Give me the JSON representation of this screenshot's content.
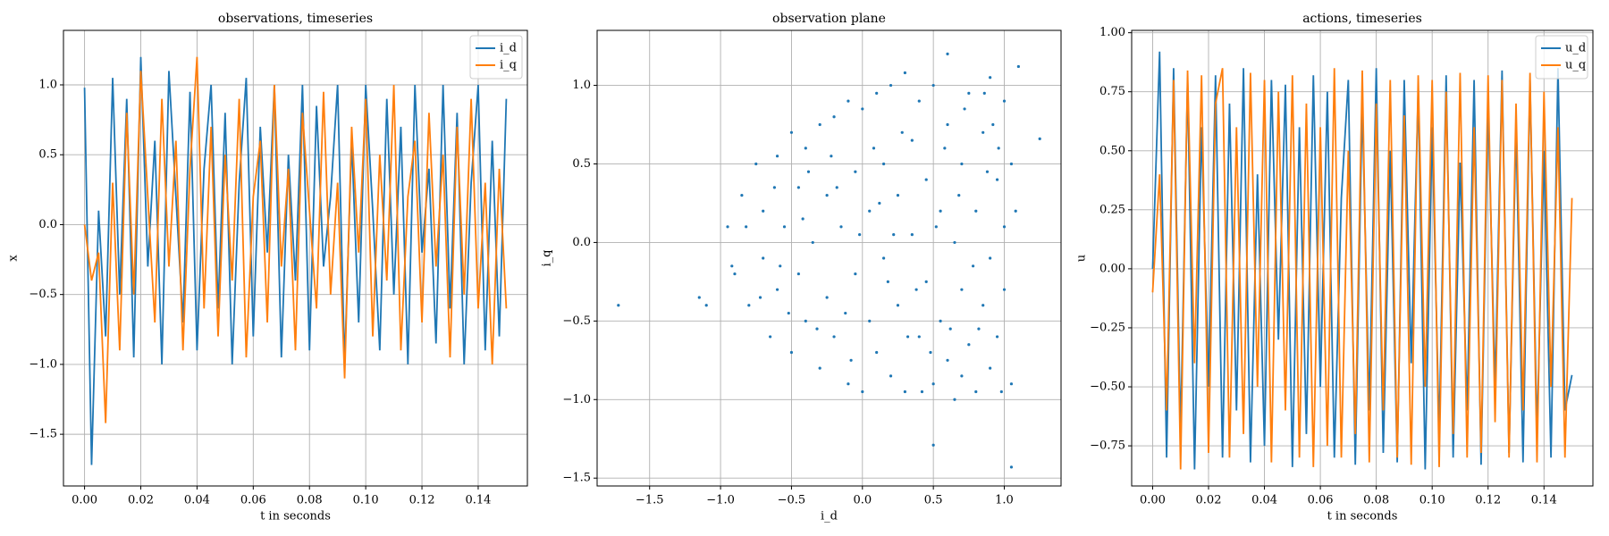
{
  "chart_data": [
    {
      "type": "line",
      "title": "observations, timeseries",
      "xlabel": "t in seconds",
      "ylabel": "x",
      "grid": true,
      "legend": "upper right",
      "x": [
        0,
        0.0025,
        0.005,
        0.0075,
        0.01,
        0.0125,
        0.015,
        0.0175,
        0.02,
        0.0225,
        0.025,
        0.0275,
        0.03,
        0.0325,
        0.035,
        0.0375,
        0.04,
        0.0425,
        0.045,
        0.0475,
        0.05,
        0.0525,
        0.055,
        0.0575,
        0.06,
        0.0625,
        0.065,
        0.0675,
        0.07,
        0.0725,
        0.075,
        0.0775,
        0.08,
        0.0825,
        0.085,
        0.0875,
        0.09,
        0.0925,
        0.095,
        0.0975,
        0.1,
        0.1025,
        0.105,
        0.1075,
        0.11,
        0.1125,
        0.115,
        0.1175,
        0.12,
        0.1225,
        0.125,
        0.1275,
        0.13,
        0.1325,
        0.135,
        0.1375,
        0.14,
        0.1425,
        0.145,
        0.1475,
        0.15
      ],
      "series": [
        {
          "name": "i_d",
          "color": "#1f77b4",
          "values": [
            0.98,
            -1.72,
            0.1,
            -0.8,
            1.05,
            -0.5,
            0.9,
            -0.95,
            1.2,
            -0.3,
            0.6,
            -1.0,
            1.1,
            0.2,
            -0.7,
            0.95,
            -0.9,
            0.4,
            1.0,
            -0.6,
            0.8,
            -1.0,
            0.3,
            1.05,
            -0.8,
            0.7,
            -0.2,
            1.0,
            -0.95,
            0.5,
            -0.4,
            1.0,
            -0.9,
            0.85,
            -0.3,
            0.2,
            1.0,
            -1.0,
            0.6,
            -0.7,
            1.0,
            0.1,
            -0.9,
            0.9,
            -0.5,
            0.7,
            -1.0,
            1.0,
            -0.2,
            0.4,
            -0.85,
            1.0,
            -0.6,
            0.8,
            -1.0,
            0.3,
            1.0,
            -0.9,
            0.6,
            -0.8,
            0.9
          ]
        },
        {
          "name": "i_q",
          "color": "#ff7f0e",
          "values": [
            0.0,
            -0.4,
            -0.2,
            -1.42,
            0.3,
            -0.9,
            0.8,
            -0.5,
            1.1,
            0.2,
            -0.7,
            0.9,
            -0.3,
            0.6,
            -0.9,
            0.4,
            1.2,
            -0.6,
            0.7,
            -0.8,
            0.5,
            -0.4,
            0.9,
            -0.95,
            0.2,
            0.6,
            -0.7,
            1.0,
            -0.3,
            0.4,
            -0.9,
            0.8,
            0.1,
            -0.6,
            0.95,
            -0.5,
            0.3,
            -1.1,
            0.7,
            -0.2,
            0.9,
            -0.8,
            0.5,
            -0.4,
            1.0,
            -0.9,
            0.2,
            0.6,
            -0.7,
            0.8,
            -0.3,
            0.5,
            -0.95,
            0.7,
            -0.5,
            0.9,
            -0.6,
            0.3,
            -1.0,
            0.4,
            -0.6
          ]
        }
      ],
      "xlim": [
        -0.0075,
        0.1575
      ],
      "ylim": [
        -1.87,
        1.39
      ],
      "xticks": [
        {
          "value": 0,
          "label": "0.00"
        },
        0.02,
        0.04,
        0.06,
        0.08,
        {
          "value": 0.1,
          "label": "0.10"
        },
        0.12,
        0.14
      ],
      "yticks": [
        {
          "value": -1.5,
          "label": "−1.5"
        },
        {
          "value": -1,
          "label": "−1.0"
        },
        {
          "value": -0.5,
          "label": "−0.5"
        },
        {
          "value": 0,
          "label": "0.0"
        },
        0.5,
        {
          "value": 1,
          "label": "1.0"
        }
      ]
    },
    {
      "type": "scatter",
      "title": "observation plane",
      "xlabel": "i_d",
      "ylabel": "i_q",
      "grid": true,
      "color": "#1f77b4",
      "x": [
        -1.72,
        -1.1,
        -1.15,
        0.5,
        1.05,
        1.25,
        -0.95,
        -0.9,
        -0.85,
        -0.8,
        -0.75,
        -0.7,
        -0.7,
        -0.65,
        -0.6,
        -0.6,
        -0.55,
        -0.5,
        -0.5,
        -0.45,
        -0.45,
        -0.4,
        -0.4,
        -0.35,
        -0.3,
        -0.3,
        -0.25,
        -0.25,
        -0.2,
        -0.2,
        -0.15,
        -0.1,
        -0.1,
        -0.05,
        -0.05,
        0.0,
        0.0,
        0.05,
        0.05,
        0.1,
        0.1,
        0.15,
        0.15,
        0.2,
        0.2,
        0.25,
        0.25,
        0.3,
        0.3,
        0.35,
        0.35,
        0.4,
        0.4,
        0.45,
        0.45,
        0.5,
        0.5,
        0.55,
        0.55,
        0.6,
        0.6,
        0.6,
        0.65,
        0.65,
        0.7,
        0.7,
        0.75,
        0.75,
        0.8,
        0.8,
        0.85,
        0.85,
        0.9,
        0.9,
        0.9,
        0.95,
        0.95,
        1.0,
        1.0,
        1.0,
        1.05,
        1.05,
        1.1,
        0.92,
        0.78,
        0.68,
        0.58,
        0.48,
        0.38,
        0.28,
        0.18,
        0.08,
        -0.02,
        -0.12,
        -0.22,
        -0.32,
        -0.42,
        -0.52,
        -0.62,
        -0.72,
        -0.82,
        -0.92,
        0.88,
        0.72,
        0.52,
        0.32,
        0.12,
        -0.08,
        0.62,
        0.82,
        0.98,
        1.08,
        0.42,
        0.22,
        -0.18,
        -0.38,
        -0.58,
        0.7,
        0.86,
        0.96
      ],
      "values": [
        -0.4,
        -0.4,
        -0.35,
        -1.29,
        -1.43,
        0.66,
        0.1,
        -0.2,
        0.3,
        -0.4,
        0.5,
        -0.1,
        0.2,
        -0.6,
        0.55,
        -0.3,
        0.1,
        0.7,
        -0.7,
        0.35,
        -0.2,
        0.6,
        -0.5,
        0.0,
        0.75,
        -0.8,
        0.3,
        -0.35,
        0.8,
        -0.6,
        0.1,
        0.9,
        -0.9,
        0.45,
        -0.2,
        0.85,
        -0.95,
        0.2,
        -0.5,
        0.95,
        -0.7,
        0.5,
        -0.1,
        1.0,
        -0.85,
        0.3,
        -0.4,
        1.08,
        -0.95,
        0.65,
        0.05,
        -0.6,
        0.9,
        -0.25,
        0.4,
        1.0,
        -0.9,
        0.2,
        -0.5,
        1.2,
        0.75,
        -0.75,
        0.0,
        -1.0,
        0.5,
        -0.3,
        0.95,
        -0.65,
        0.2,
        -0.95,
        0.7,
        -0.4,
        1.05,
        -0.1,
        -0.8,
        0.4,
        -0.6,
        0.9,
        0.1,
        -0.3,
        0.5,
        -0.9,
        1.12,
        0.75,
        -0.15,
        0.3,
        0.6,
        -0.7,
        -0.3,
        0.7,
        -0.25,
        0.6,
        0.05,
        -0.45,
        0.55,
        -0.55,
        0.15,
        -0.45,
        0.35,
        -0.35,
        0.1,
        -0.15,
        0.45,
        0.85,
        0.1,
        -0.6,
        0.25,
        -0.75,
        -0.55,
        -0.55,
        -0.95,
        0.2,
        -0.95,
        0.05,
        0.35,
        0.45,
        -0.15,
        -0.85,
        0.95,
        0.6
      ],
      "xlim": [
        -1.87,
        1.4
      ],
      "ylim": [
        -1.55,
        1.35
      ],
      "xticks": [
        {
          "value": -1.5,
          "label": "−1.5"
        },
        {
          "value": -1,
          "label": "−1.0"
        },
        {
          "value": -0.5,
          "label": "−0.5"
        },
        {
          "value": 0,
          "label": "0.0"
        },
        0.5,
        {
          "value": 1,
          "label": "1.0"
        }
      ],
      "yticks": [
        {
          "value": -1.5,
          "label": "−1.5"
        },
        {
          "value": -1,
          "label": "−1.0"
        },
        {
          "value": -0.5,
          "label": "−0.5"
        },
        {
          "value": 0,
          "label": "0.0"
        },
        0.5,
        {
          "value": 1,
          "label": "1.0"
        }
      ]
    },
    {
      "type": "line",
      "title": "actions, timeseries",
      "xlabel": "t in seconds",
      "ylabel": "u",
      "grid": true,
      "legend": "upper right",
      "x": [
        0,
        0.0025,
        0.005,
        0.0075,
        0.01,
        0.0125,
        0.015,
        0.0175,
        0.02,
        0.0225,
        0.025,
        0.0275,
        0.03,
        0.0325,
        0.035,
        0.0375,
        0.04,
        0.0425,
        0.045,
        0.0475,
        0.05,
        0.0525,
        0.055,
        0.0575,
        0.06,
        0.0625,
        0.065,
        0.0675,
        0.07,
        0.0725,
        0.075,
        0.0775,
        0.08,
        0.0825,
        0.085,
        0.0875,
        0.09,
        0.0925,
        0.095,
        0.0975,
        0.1,
        0.1025,
        0.105,
        0.1075,
        0.11,
        0.1125,
        0.115,
        0.1175,
        0.12,
        0.1225,
        0.125,
        0.1275,
        0.13,
        0.1325,
        0.135,
        0.1375,
        0.14,
        0.1425,
        0.145,
        0.1475,
        0.15
      ],
      "series": [
        {
          "name": "u_d",
          "color": "#1f77b4",
          "values": [
            0.0,
            0.92,
            -0.8,
            0.85,
            -0.7,
            0.8,
            -0.85,
            0.6,
            -0.5,
            0.82,
            -0.8,
            0.7,
            -0.6,
            0.85,
            -0.82,
            0.4,
            -0.75,
            0.8,
            -0.3,
            0.78,
            -0.84,
            0.6,
            -0.7,
            0.82,
            -0.5,
            0.75,
            -0.8,
            0.3,
            0.8,
            -0.83,
            0.7,
            -0.6,
            0.85,
            -0.78,
            0.5,
            -0.82,
            0.8,
            -0.4,
            0.76,
            -0.85,
            0.6,
            -0.7,
            0.82,
            -0.8,
            0.45,
            -0.6,
            0.8,
            -0.83,
            0.7,
            -0.5,
            0.84,
            -0.78,
            0.6,
            -0.82,
            0.8,
            -0.7,
            0.5,
            -0.8,
            0.85,
            -0.6,
            -0.45
          ]
        },
        {
          "name": "u_q",
          "color": "#ff7f0e",
          "values": [
            -0.1,
            0.4,
            -0.6,
            0.8,
            -0.85,
            0.84,
            -0.4,
            0.82,
            -0.78,
            0.7,
            0.85,
            -0.8,
            0.6,
            -0.7,
            0.83,
            -0.5,
            0.8,
            -0.82,
            0.75,
            -0.6,
            0.82,
            -0.8,
            0.7,
            -0.84,
            0.6,
            -0.75,
            0.85,
            -0.8,
            0.5,
            -0.7,
            0.84,
            -0.82,
            0.7,
            -0.6,
            0.8,
            -0.8,
            0.65,
            -0.83,
            0.82,
            -0.5,
            0.8,
            -0.84,
            0.75,
            -0.7,
            0.83,
            -0.8,
            0.6,
            -0.78,
            0.82,
            -0.65,
            0.8,
            -0.8,
            0.7,
            -0.6,
            0.83,
            -0.82,
            0.75,
            -0.5,
            0.6,
            -0.8,
            0.3
          ]
        }
      ],
      "xlim": [
        -0.0075,
        0.1575
      ],
      "ylim": [
        -0.92,
        1.01
      ],
      "xticks": [
        {
          "value": 0,
          "label": "0.00"
        },
        0.02,
        0.04,
        0.06,
        0.08,
        {
          "value": 0.1,
          "label": "0.10"
        },
        0.12,
        0.14
      ],
      "yticks": [
        {
          "value": -0.75,
          "label": "−0.75"
        },
        {
          "value": -0.5,
          "label": "−0.50"
        },
        {
          "value": -0.25,
          "label": "−0.25"
        },
        {
          "value": 0,
          "label": "0.00"
        },
        0.25,
        {
          "value": 0.5,
          "label": "0.50"
        },
        0.75,
        {
          "value": 1,
          "label": "1.00"
        }
      ]
    }
  ]
}
